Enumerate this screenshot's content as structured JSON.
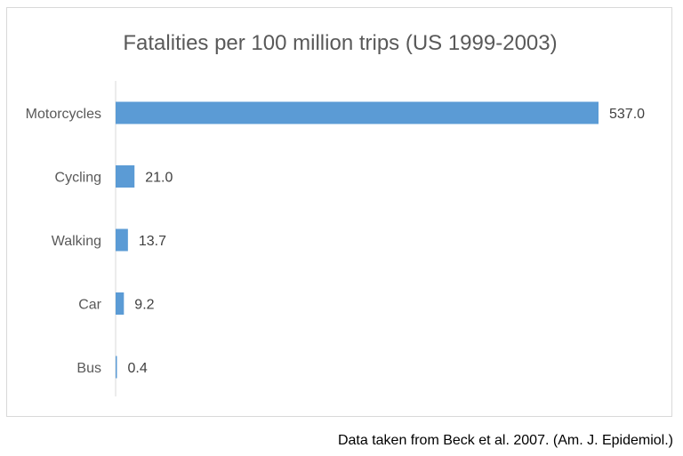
{
  "chart_data": {
    "type": "bar",
    "orientation": "horizontal",
    "title": "Fatalities per 100 million trips (US 1999-2003)",
    "categories": [
      "Motorcycles",
      "Cycling",
      "Walking",
      "Car",
      "Bus"
    ],
    "values": [
      537.0,
      21.0,
      13.7,
      9.2,
      0.4
    ],
    "data_labels": [
      "537.0",
      "21.0",
      "13.7",
      "9.2",
      "0.4"
    ],
    "xlabel": "",
    "ylabel": "",
    "xlim": [
      0,
      537.0
    ],
    "grid": false,
    "legend": "none",
    "bar_color": "#5b9bd5"
  },
  "caption": "Data taken from Beck et al. 2007. (Am. J. Epidemiol.)"
}
